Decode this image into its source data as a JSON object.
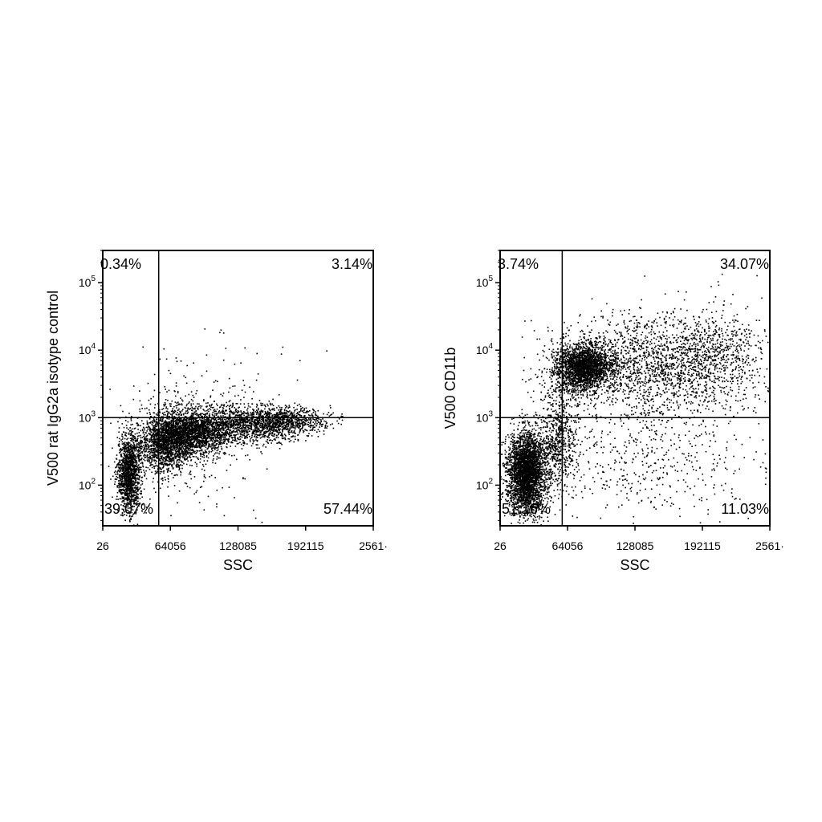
{
  "chart_data": [
    {
      "type": "scatter",
      "title": "",
      "xlabel": "SSC",
      "ylabel": "V500 rat IgG2a isotype control",
      "x_ticks": [
        "26",
        "64056",
        "128085",
        "192115",
        "2561·"
      ],
      "y_ticks": [
        {
          "base": "10",
          "exp": "2"
        },
        {
          "base": "10",
          "exp": "3"
        },
        {
          "base": "10",
          "exp": "4"
        },
        {
          "base": "10",
          "exp": "5"
        }
      ],
      "xlim": [
        26,
        256144
      ],
      "ylim": [
        25,
        300000
      ],
      "y_scale": "log",
      "gate": {
        "x": 53000,
        "y": 1000
      },
      "quadrants": {
        "upper_left": "0.34%",
        "upper_right": "3.14%",
        "lower_left": "39.07%",
        "lower_right": "57.44%"
      },
      "populations": [
        {
          "x": 25000,
          "y": 150,
          "sx": 5500,
          "sy": 0.28,
          "n": 1400
        },
        {
          "x": 60000,
          "y": 400,
          "sx": 14000,
          "sy": 0.2,
          "n": 1500
        },
        {
          "x": 85000,
          "y": 600,
          "sx": 18000,
          "sy": 0.15,
          "n": 1700
        },
        {
          "x": 135000,
          "y": 800,
          "sx": 28000,
          "sy": 0.13,
          "n": 1300
        },
        {
          "x": 175000,
          "y": 900,
          "sx": 18000,
          "sy": 0.1,
          "n": 600
        },
        {
          "x": 80000,
          "y": 1500,
          "sx": 28000,
          "sy": 0.2,
          "n": 180
        },
        {
          "x": 90000,
          "y": 180,
          "sx": 30000,
          "sy": 0.3,
          "n": 120
        },
        {
          "x": 120000,
          "y": 6000,
          "sx": 40000,
          "sy": 0.3,
          "n": 40
        }
      ]
    },
    {
      "type": "scatter",
      "title": "",
      "xlabel": "SSC",
      "ylabel": "V500 CD11b",
      "x_ticks": [
        "26",
        "64056",
        "128085",
        "192115",
        "2561·"
      ],
      "y_ticks": [
        {
          "base": "10",
          "exp": "2"
        },
        {
          "base": "10",
          "exp": "3"
        },
        {
          "base": "10",
          "exp": "4"
        },
        {
          "base": "10",
          "exp": "5"
        }
      ],
      "xlim": [
        26,
        256144
      ],
      "ylim": [
        25,
        300000
      ],
      "y_scale": "log",
      "gate": {
        "x": 59000,
        "y": 1000
      },
      "quadrants": {
        "upper_left": "3.74%",
        "upper_right": "34.07%",
        "lower_left": "51.16%",
        "lower_right": "11.03%"
      },
      "populations": [
        {
          "x": 25000,
          "y": 150,
          "sx": 9000,
          "sy": 0.3,
          "n": 3200
        },
        {
          "x": 55000,
          "y": 400,
          "sx": 9000,
          "sy": 0.35,
          "n": 600
        },
        {
          "x": 80000,
          "y": 5500,
          "sx": 13000,
          "sy": 0.17,
          "n": 2200
        },
        {
          "x": 150000,
          "y": 6000,
          "sx": 45000,
          "sy": 0.38,
          "n": 1900
        },
        {
          "x": 215000,
          "y": 8000,
          "sx": 25000,
          "sy": 0.35,
          "n": 400
        },
        {
          "x": 145000,
          "y": 200,
          "sx": 55000,
          "sy": 0.4,
          "n": 450
        },
        {
          "x": 60000,
          "y": 2500,
          "sx": 15000,
          "sy": 0.4,
          "n": 250
        }
      ]
    }
  ]
}
